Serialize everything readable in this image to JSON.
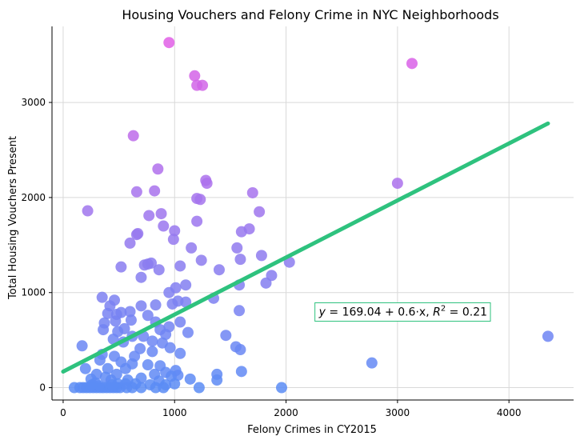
{
  "chart_data": {
    "type": "scatter",
    "title": "Housing Vouchers and Felony Crime in NYC Neighborhoods",
    "xlabel": "Felony Crimes in CY2015",
    "ylabel": "Total Housing Vouchers Present",
    "xlim": [
      -100,
      4580
    ],
    "ylim": [
      -130,
      3800
    ],
    "xticks": [
      0,
      1000,
      2000,
      3000,
      4000
    ],
    "yticks": [
      0,
      1000,
      2000,
      3000
    ],
    "grid": true,
    "point_color_scale": {
      "low": "#5b8cf5",
      "high": "#e25fe6",
      "min": 0,
      "max": 3650
    },
    "trendline": {
      "intercept": 169.04,
      "slope": 0.6,
      "x_range": [
        0,
        4350
      ],
      "color": "#2ec27e",
      "equation": {
        "y": "y",
        "eq": " = 169.04 + 0.6·x,  ",
        "r": "R",
        "sup": "2",
        "rhs": " = 0.21"
      },
      "label_x": 3050,
      "label_y": 800,
      "box_color": "#2ec27e"
    },
    "points": [
      [
        950,
        3630
      ],
      [
        3130,
        3410
      ],
      [
        1180,
        3280
      ],
      [
        1200,
        3180
      ],
      [
        1250,
        3180
      ],
      [
        630,
        2650
      ],
      [
        850,
        2300
      ],
      [
        1280,
        2180
      ],
      [
        1290,
        2150
      ],
      [
        660,
        2060
      ],
      [
        820,
        2070
      ],
      [
        1700,
        2050
      ],
      [
        1200,
        1990
      ],
      [
        1230,
        1980
      ],
      [
        3000,
        2150
      ],
      [
        1760,
        1850
      ],
      [
        220,
        1860
      ],
      [
        770,
        1810
      ],
      [
        880,
        1830
      ],
      [
        1200,
        1750
      ],
      [
        900,
        1700
      ],
      [
        1000,
        1650
      ],
      [
        1670,
        1670
      ],
      [
        1600,
        1640
      ],
      [
        600,
        1520
      ],
      [
        660,
        1610
      ],
      [
        670,
        1620
      ],
      [
        990,
        1560
      ],
      [
        1150,
        1470
      ],
      [
        1560,
        1470
      ],
      [
        1780,
        1390
      ],
      [
        1240,
        1340
      ],
      [
        1590,
        1350
      ],
      [
        2030,
        1320
      ],
      [
        790,
        1310
      ],
      [
        730,
        1290
      ],
      [
        760,
        1300
      ],
      [
        520,
        1270
      ],
      [
        1050,
        1280
      ],
      [
        860,
        1240
      ],
      [
        1400,
        1240
      ],
      [
        1870,
        1180
      ],
      [
        700,
        1160
      ],
      [
        1820,
        1100
      ],
      [
        1100,
        1080
      ],
      [
        1010,
        1050
      ],
      [
        1580,
        1080
      ],
      [
        950,
        1000
      ],
      [
        1350,
        940
      ],
      [
        350,
        950
      ],
      [
        1100,
        900
      ],
      [
        980,
        880
      ],
      [
        1030,
        910
      ],
      [
        460,
        920
      ],
      [
        420,
        860
      ],
      [
        700,
        860
      ],
      [
        830,
        870
      ],
      [
        1580,
        810
      ],
      [
        600,
        800
      ],
      [
        400,
        780
      ],
      [
        520,
        790
      ],
      [
        480,
        770
      ],
      [
        760,
        760
      ],
      [
        830,
        690
      ],
      [
        470,
        700
      ],
      [
        370,
        680
      ],
      [
        610,
        710
      ],
      [
        1050,
        690
      ],
      [
        550,
        620
      ],
      [
        950,
        640
      ],
      [
        870,
        610
      ],
      [
        360,
        610
      ],
      [
        490,
        590
      ],
      [
        920,
        560
      ],
      [
        1120,
        580
      ],
      [
        1460,
        550
      ],
      [
        720,
        540
      ],
      [
        620,
        540
      ],
      [
        540,
        480
      ],
      [
        450,
        510
      ],
      [
        800,
        490
      ],
      [
        890,
        470
      ],
      [
        170,
        440
      ],
      [
        1550,
        430
      ],
      [
        1590,
        400
      ],
      [
        960,
        420
      ],
      [
        690,
        410
      ],
      [
        800,
        380
      ],
      [
        1050,
        360
      ],
      [
        640,
        330
      ],
      [
        350,
        350
      ],
      [
        460,
        330
      ],
      [
        330,
        290
      ],
      [
        520,
        270
      ],
      [
        620,
        250
      ],
      [
        760,
        240
      ],
      [
        2770,
        260
      ],
      [
        870,
        230
      ],
      [
        200,
        200
      ],
      [
        400,
        200
      ],
      [
        560,
        200
      ],
      [
        1010,
        180
      ],
      [
        920,
        160
      ],
      [
        1600,
        170
      ],
      [
        300,
        140
      ],
      [
        480,
        140
      ],
      [
        820,
        140
      ],
      [
        1030,
        130
      ],
      [
        1380,
        140
      ],
      [
        380,
        110
      ],
      [
        700,
        100
      ],
      [
        970,
        120
      ],
      [
        250,
        90
      ],
      [
        430,
        80
      ],
      [
        580,
        80
      ],
      [
        1380,
        80
      ],
      [
        860,
        70
      ],
      [
        1140,
        90
      ],
      [
        290,
        50
      ],
      [
        490,
        40
      ],
      [
        650,
        40
      ],
      [
        780,
        30
      ],
      [
        920,
        30
      ],
      [
        100,
        0
      ],
      [
        150,
        0
      ],
      [
        180,
        0
      ],
      [
        210,
        0
      ],
      [
        240,
        0
      ],
      [
        270,
        0
      ],
      [
        300,
        0
      ],
      [
        330,
        0
      ],
      [
        360,
        0
      ],
      [
        390,
        0
      ],
      [
        420,
        0
      ],
      [
        450,
        0
      ],
      [
        480,
        0
      ],
      [
        510,
        0
      ],
      [
        570,
        0
      ],
      [
        620,
        0
      ],
      [
        700,
        0
      ],
      [
        830,
        0
      ],
      [
        1220,
        0
      ],
      [
        1960,
        0
      ],
      [
        4350,
        540
      ],
      [
        900,
        0
      ],
      [
        1000,
        40
      ],
      [
        560,
        40
      ],
      [
        320,
        20
      ],
      [
        440,
        30
      ],
      [
        260,
        30
      ]
    ]
  }
}
